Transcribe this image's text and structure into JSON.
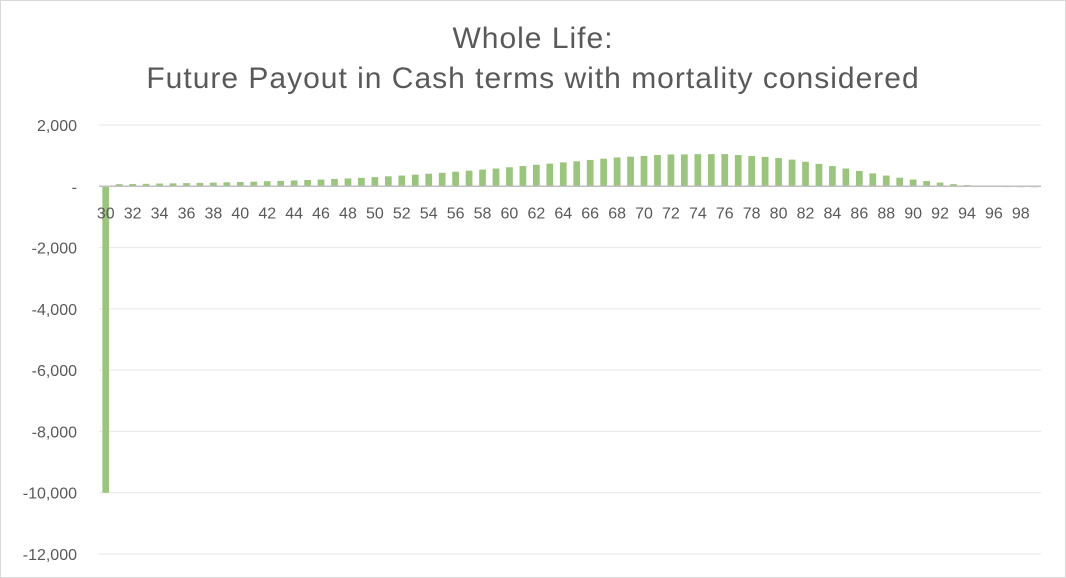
{
  "chart_data": {
    "type": "bar",
    "title_line1": "Whole Life:",
    "title_line2": "Future Payout in Cash terms with mortality considered",
    "xlabel": "",
    "ylabel": "",
    "ylim": [
      -12000,
      2000
    ],
    "y_ticks": [
      2000,
      0,
      -2000,
      -4000,
      -6000,
      -8000,
      -10000,
      -12000
    ],
    "y_tick_labels": [
      "2,000",
      "-",
      "-2,000",
      "-4,000",
      "-6,000",
      "-8,000",
      "-10,000",
      "-12,000"
    ],
    "x_tick_labels": [
      "30",
      "32",
      "34",
      "36",
      "38",
      "40",
      "42",
      "44",
      "46",
      "48",
      "50",
      "52",
      "54",
      "56",
      "58",
      "60",
      "62",
      "64",
      "66",
      "68",
      "70",
      "72",
      "74",
      "76",
      "78",
      "80",
      "82",
      "84",
      "86",
      "88",
      "90",
      "92",
      "94",
      "96",
      "98"
    ],
    "grid": true,
    "bar_color": "#9bc57e",
    "categories": [
      30,
      31,
      32,
      33,
      34,
      35,
      36,
      37,
      38,
      39,
      40,
      41,
      42,
      43,
      44,
      45,
      46,
      47,
      48,
      49,
      50,
      51,
      52,
      53,
      54,
      55,
      56,
      57,
      58,
      59,
      60,
      61,
      62,
      63,
      64,
      65,
      66,
      67,
      68,
      69,
      70,
      71,
      72,
      73,
      74,
      75,
      76,
      77,
      78,
      79,
      80,
      81,
      82,
      83,
      84,
      85,
      86,
      87,
      88,
      89,
      90,
      91,
      92,
      93,
      94,
      95,
      96,
      97,
      98,
      99
    ],
    "values": [
      -10000,
      70,
      75,
      80,
      90,
      95,
      105,
      110,
      120,
      130,
      140,
      150,
      165,
      175,
      190,
      205,
      220,
      240,
      255,
      275,
      300,
      325,
      350,
      380,
      410,
      440,
      475,
      510,
      545,
      580,
      620,
      660,
      700,
      740,
      780,
      815,
      860,
      900,
      940,
      965,
      990,
      1020,
      1040,
      1040,
      1050,
      1050,
      1050,
      1020,
      990,
      960,
      920,
      870,
      800,
      730,
      660,
      580,
      500,
      420,
      350,
      280,
      220,
      170,
      120,
      70,
      40,
      20,
      10,
      5,
      3,
      2
    ]
  }
}
